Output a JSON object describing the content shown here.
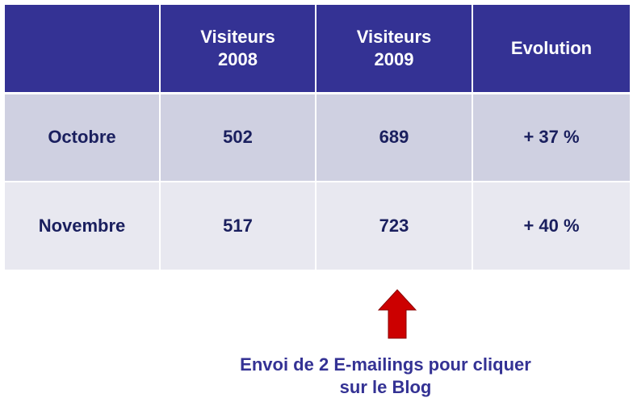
{
  "table": {
    "header": {
      "col0": "",
      "col1_line1": "Visiteurs",
      "col1_line2": "2008",
      "col2_line1": "Visiteurs",
      "col2_line2": "2009",
      "col3": "Evolution"
    },
    "rows": [
      {
        "month": "Octobre",
        "v2008": "502",
        "v2009": "689",
        "evolution": "+ 37 %"
      },
      {
        "month": "Novembre",
        "v2008": "517",
        "v2009": "723",
        "evolution": "+ 40 %"
      }
    ]
  },
  "annotation": {
    "arrow_icon": "up-arrow-icon",
    "line1": "Envoi de 2 E-mailings pour cliquer",
    "line2": "sur le Blog"
  },
  "colors": {
    "header_bg": "#343294",
    "row_odd_bg": "#cfd0e1",
    "row_even_bg": "#e8e8f0",
    "body_text": "#1a1f5e",
    "arrow": "#cc0000",
    "caption_text": "#343294"
  }
}
